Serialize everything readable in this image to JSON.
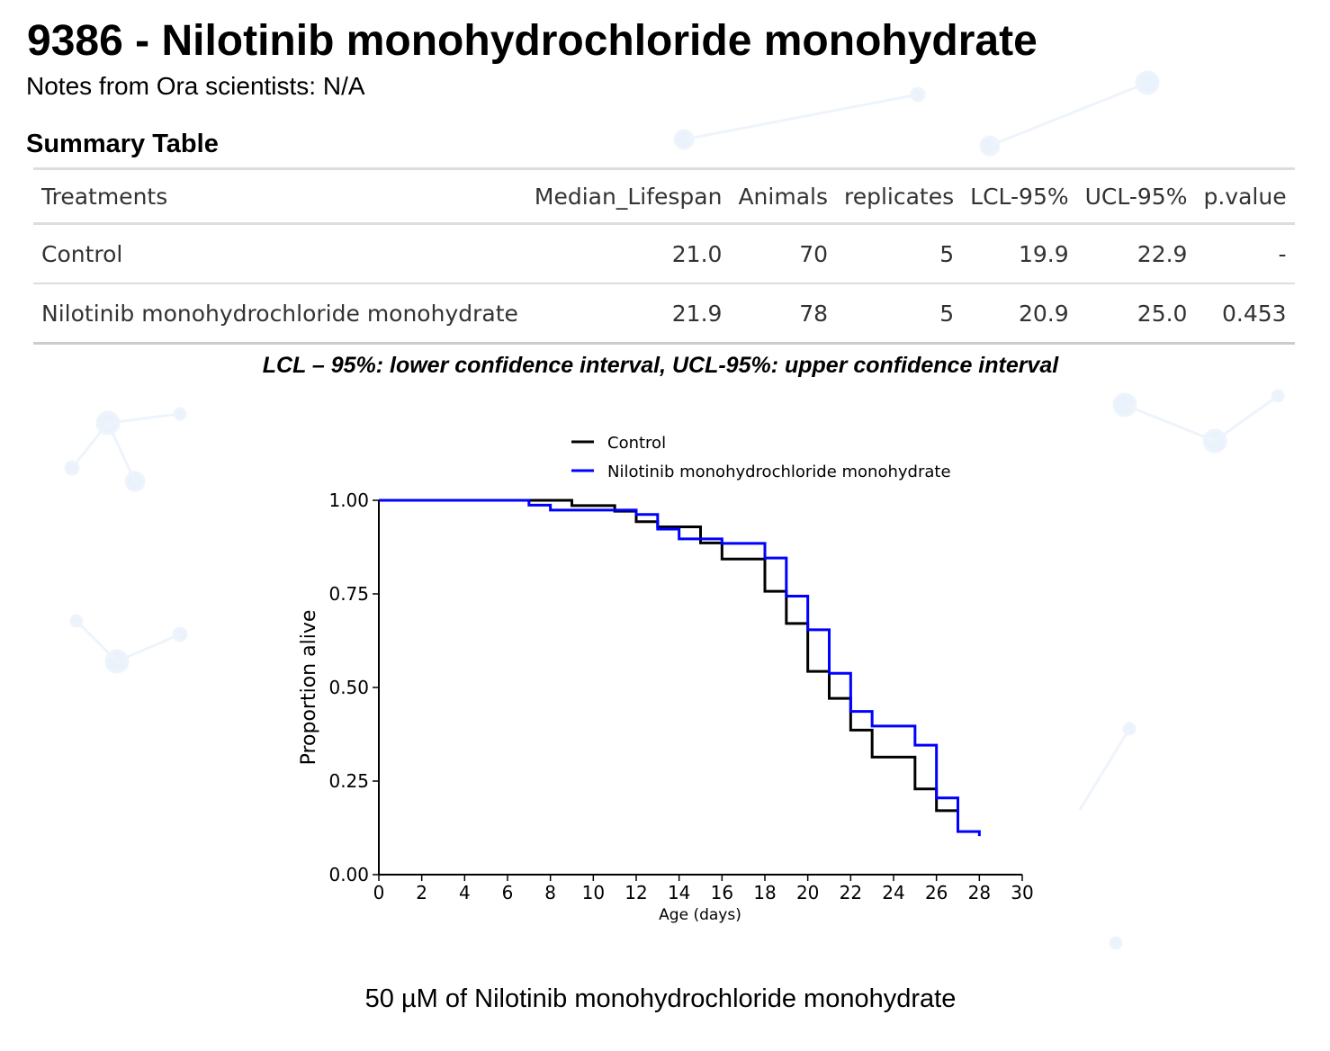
{
  "title": "9386 - Nilotinib monohydrochloride monohydrate",
  "notes": "Notes from Ora scientists: N/A",
  "summary_title": "Summary Table",
  "table": {
    "headers": [
      "Treatments",
      "Median_Lifespan",
      "Animals",
      "replicates",
      "LCL-95%",
      "UCL-95%",
      "p.value"
    ],
    "rows": [
      [
        "Control",
        "21.0",
        "70",
        "5",
        "19.9",
        "22.9",
        "-"
      ],
      [
        "Nilotinib monohydrochloride monohydrate",
        "21.9",
        "78",
        "5",
        "20.9",
        "25.0",
        "0.453"
      ]
    ]
  },
  "footnote": "LCL – 95%: lower confidence interval, UCL-95%: upper confidence interval",
  "caption": "50 µM of Nilotinib monohydrochloride monohydrate",
  "chart_data": {
    "type": "line",
    "step": true,
    "xlabel": "Age (days)",
    "ylabel": "Proportion alive",
    "xlim": [
      0,
      30
    ],
    "ylim": [
      0,
      1
    ],
    "xticks": [
      0,
      2,
      4,
      6,
      8,
      10,
      12,
      14,
      16,
      18,
      20,
      22,
      24,
      26,
      28,
      30
    ],
    "yticks": [
      "0.00",
      "0.25",
      "0.50",
      "0.75",
      "1.00"
    ],
    "legend_position": "top",
    "series": [
      {
        "name": "Control",
        "color": "#000000",
        "x": [
          0,
          9,
          11,
          12,
          13,
          15,
          16,
          18,
          19,
          20,
          21,
          22,
          23,
          25,
          26,
          27
        ],
        "y": [
          1.0,
          0.986,
          0.971,
          0.943,
          0.929,
          0.886,
          0.843,
          0.757,
          0.671,
          0.543,
          0.471,
          0.386,
          0.314,
          0.229,
          0.171,
          0.171
        ]
      },
      {
        "name": "Nilotinib monohydrochloride monohydrate",
        "color": "#0000ff",
        "x": [
          0,
          7,
          8,
          12,
          13,
          14,
          16,
          18,
          19,
          20,
          21,
          22,
          23,
          25,
          26,
          27,
          28
        ],
        "y": [
          1.0,
          0.987,
          0.974,
          0.962,
          0.923,
          0.897,
          0.885,
          0.846,
          0.744,
          0.654,
          0.538,
          0.436,
          0.397,
          0.346,
          0.205,
          0.115,
          0.103
        ]
      }
    ]
  }
}
